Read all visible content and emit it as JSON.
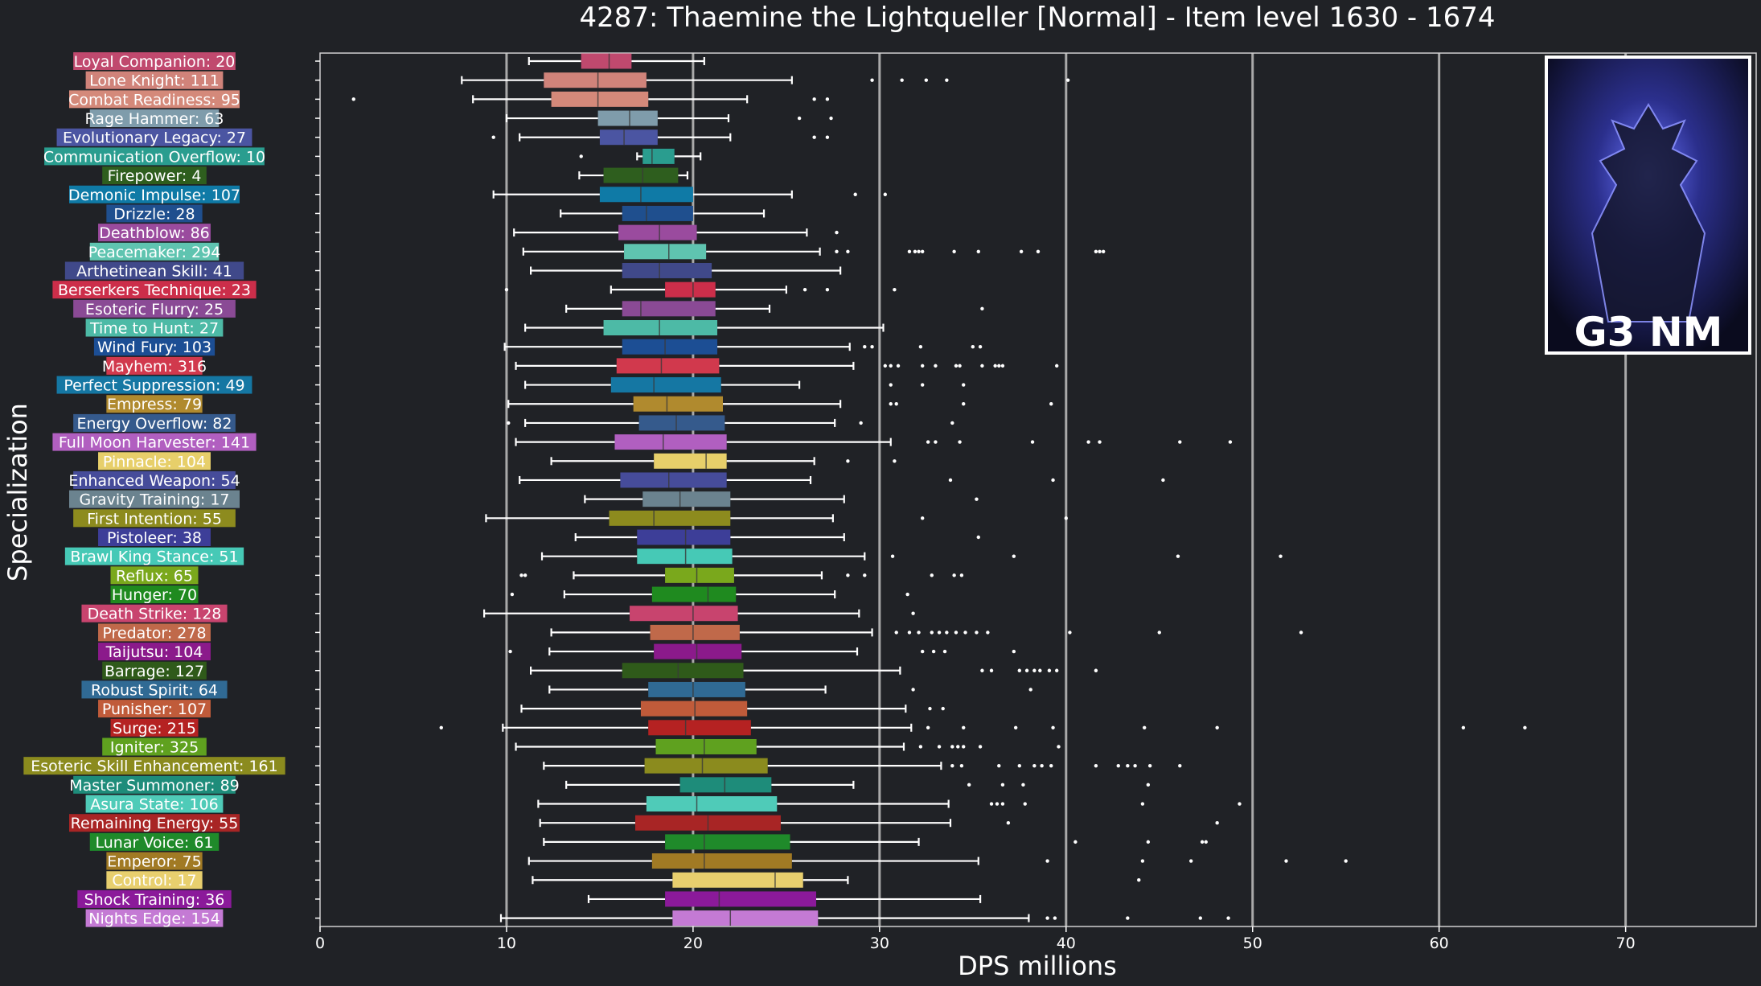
{
  "chart_data": {
    "type": "box",
    "title": "4287: Thaemine the Lightqueller [Normal] - Item level 1630 - 1674",
    "xlabel": "DPS millions",
    "ylabel": "Specialization",
    "xlim": [
      0,
      77
    ],
    "xticks": [
      0,
      10,
      20,
      30,
      40,
      50,
      60,
      70
    ],
    "grid": "vertical gridlines at 10, 20, 30, 40, 50, 60, 70",
    "badge": "G3 NM",
    "series": [
      {
        "label": "Loyal Companion: 20",
        "color": "#c0496e",
        "whislo": 11.2,
        "q1": 14.0,
        "med": 15.5,
        "q3": 16.7,
        "whishi": 20.6,
        "fliers": []
      },
      {
        "label": "Lone Knight: 111",
        "color": "#d0837a",
        "whislo": 7.6,
        "q1": 12.0,
        "med": 14.9,
        "q3": 17.5,
        "whishi": 25.3,
        "fliers": [
          29.6,
          31.2,
          32.5,
          33.6,
          40.1
        ]
      },
      {
        "label": "Combat Readiness: 95",
        "color": "#d4897a",
        "whislo": 8.2,
        "q1": 12.4,
        "med": 14.9,
        "q3": 17.6,
        "whishi": 22.9,
        "fliers": [
          1.8,
          26.5,
          27.2
        ]
      },
      {
        "label": "Rage Hammer: 63",
        "color": "#7f9cab",
        "whislo": 10.0,
        "q1": 14.9,
        "med": 16.6,
        "q3": 18.1,
        "whishi": 21.9,
        "fliers": [
          25.7,
          27.4
        ]
      },
      {
        "label": "Evolutionary Legacy: 27",
        "color": "#4b55a2",
        "whislo": 10.7,
        "q1": 15.0,
        "med": 16.3,
        "q3": 18.1,
        "whishi": 22.0,
        "fliers": [
          9.3,
          26.5,
          27.2
        ]
      },
      {
        "label": "Communication Overflow: 10",
        "color": "#2a9d8f",
        "whislo": 17.0,
        "q1": 17.3,
        "med": 17.8,
        "q3": 19.0,
        "whishi": 20.4,
        "fliers": [
          14.0
        ]
      },
      {
        "label": "Firepower: 4",
        "color": "#2e5e1e",
        "whislo": 13.9,
        "q1": 15.2,
        "med": 17.3,
        "q3": 19.2,
        "whishi": 19.7,
        "fliers": []
      },
      {
        "label": "Demonic Impulse: 107",
        "color": "#0f7aa6",
        "whislo": 9.3,
        "q1": 15.0,
        "med": 17.2,
        "q3": 20.0,
        "whishi": 25.3,
        "fliers": [
          28.7,
          30.3
        ]
      },
      {
        "label": "Drizzle: 28",
        "color": "#1f4f8e",
        "whislo": 12.9,
        "q1": 16.2,
        "med": 17.5,
        "q3": 20.0,
        "whishi": 23.8,
        "fliers": []
      },
      {
        "label": "Deathblow: 86",
        "color": "#9a4b9e",
        "whislo": 10.4,
        "q1": 16.0,
        "med": 18.2,
        "q3": 20.2,
        "whishi": 26.1,
        "fliers": [
          27.7
        ]
      },
      {
        "label": "Peacemaker: 294",
        "color": "#5fc4b0",
        "whislo": 10.9,
        "q1": 16.3,
        "med": 18.7,
        "q3": 20.7,
        "whishi": 26.8,
        "fliers": [
          27.7,
          28.3,
          31.6,
          31.9,
          32.1,
          32.3,
          34.0,
          35.3,
          37.6,
          38.5,
          41.6,
          41.8,
          42.0
        ]
      },
      {
        "label": "Arthetinean Skill: 41",
        "color": "#40498a",
        "whislo": 11.3,
        "q1": 16.2,
        "med": 18.2,
        "q3": 21.0,
        "whishi": 27.9,
        "fliers": []
      },
      {
        "label": "Berserkers Technique: 23",
        "color": "#cc2e4a",
        "whislo": 15.6,
        "q1": 18.5,
        "med": 20.0,
        "q3": 21.2,
        "whishi": 25.0,
        "fliers": [
          10.0,
          26.0,
          27.2,
          30.8
        ]
      },
      {
        "label": "Esoteric Flurry: 25",
        "color": "#8a4a95",
        "whislo": 13.2,
        "q1": 16.2,
        "med": 17.2,
        "q3": 21.2,
        "whishi": 24.1,
        "fliers": [
          35.5
        ]
      },
      {
        "label": "Time to Hunt: 27",
        "color": "#4dbaa6",
        "whislo": 11.0,
        "q1": 15.2,
        "med": 18.2,
        "q3": 21.3,
        "whishi": 30.2,
        "fliers": []
      },
      {
        "label": "Wind Fury: 103",
        "color": "#1c4e94",
        "whislo": 9.9,
        "q1": 16.2,
        "med": 18.5,
        "q3": 21.3,
        "whishi": 28.4,
        "fliers": [
          29.2,
          29.6,
          32.2,
          35.0,
          35.4
        ]
      },
      {
        "label": "Mayhem: 316",
        "color": "#d1394d",
        "whislo": 10.5,
        "q1": 15.9,
        "med": 18.3,
        "q3": 21.4,
        "whishi": 28.6,
        "fliers": [
          30.3,
          30.6,
          31.0,
          32.3,
          33.0,
          34.1,
          34.3,
          35.5,
          36.2,
          36.4,
          36.6,
          39.5
        ]
      },
      {
        "label": "Perfect Suppression: 49",
        "color": "#1577a3",
        "whislo": 11.0,
        "q1": 15.6,
        "med": 17.9,
        "q3": 21.5,
        "whishi": 25.7,
        "fliers": [
          30.6,
          32.3,
          34.5
        ]
      },
      {
        "label": "Empress: 79",
        "color": "#b08a2e",
        "whislo": 10.1,
        "q1": 16.8,
        "med": 18.6,
        "q3": 21.6,
        "whishi": 27.9,
        "fliers": [
          30.6,
          30.9,
          34.5,
          39.2
        ]
      },
      {
        "label": "Energy Overflow: 82",
        "color": "#355a8c",
        "whislo": 11.0,
        "q1": 17.1,
        "med": 19.1,
        "q3": 21.7,
        "whishi": 27.6,
        "fliers": [
          10.1,
          29.0,
          33.9
        ]
      },
      {
        "label": "Full Moon Harvester: 141",
        "color": "#b15fc0",
        "whislo": 10.5,
        "q1": 15.8,
        "med": 18.4,
        "q3": 21.8,
        "whishi": 30.6,
        "fliers": [
          32.6,
          33.0,
          34.3,
          38.2,
          41.2,
          41.8,
          46.1,
          48.8
        ]
      },
      {
        "label": "Pinnacle: 104",
        "color": "#e7cf6a",
        "whislo": 12.4,
        "q1": 17.9,
        "med": 20.7,
        "q3": 21.8,
        "whishi": 26.5,
        "fliers": [
          28.3,
          30.8
        ]
      },
      {
        "label": "Enhanced Weapon: 54",
        "color": "#464c9a",
        "whislo": 10.7,
        "q1": 16.1,
        "med": 18.7,
        "q3": 21.8,
        "whishi": 26.3,
        "fliers": [
          33.8,
          39.3,
          45.2
        ]
      },
      {
        "label": "Gravity Training: 17",
        "color": "#6b838f",
        "whislo": 14.2,
        "q1": 17.3,
        "med": 19.3,
        "q3": 22.0,
        "whishi": 28.1,
        "fliers": [
          35.2
        ]
      },
      {
        "label": "First Intention: 55",
        "color": "#8d8b1e",
        "whislo": 8.9,
        "q1": 15.5,
        "med": 17.9,
        "q3": 22.0,
        "whishi": 27.5,
        "fliers": [
          32.3,
          40.0
        ]
      },
      {
        "label": "Pistoleer: 38",
        "color": "#3d3e98",
        "whislo": 13.7,
        "q1": 17.0,
        "med": 19.6,
        "q3": 22.0,
        "whishi": 28.1,
        "fliers": [
          35.3
        ]
      },
      {
        "label": "Brawl King Stance: 51",
        "color": "#46c9b6",
        "whislo": 11.9,
        "q1": 17.0,
        "med": 19.6,
        "q3": 22.1,
        "whishi": 29.2,
        "fliers": [
          30.7,
          37.2,
          46.0,
          51.5
        ]
      },
      {
        "label": "Reflux: 65",
        "color": "#7aa81c",
        "whislo": 13.6,
        "q1": 18.5,
        "med": 20.2,
        "q3": 22.2,
        "whishi": 26.9,
        "fliers": [
          10.8,
          11.0,
          28.3,
          29.2,
          32.8,
          34.0,
          34.4
        ]
      },
      {
        "label": "Hunger: 70",
        "color": "#1f8a1f",
        "whislo": 13.1,
        "q1": 17.8,
        "med": 20.8,
        "q3": 22.3,
        "whishi": 27.6,
        "fliers": [
          10.3,
          31.5
        ]
      },
      {
        "label": "Death Strike: 128",
        "color": "#c8446e",
        "whislo": 8.8,
        "q1": 16.6,
        "med": 20.0,
        "q3": 22.4,
        "whishi": 28.9,
        "fliers": [
          31.8
        ]
      },
      {
        "label": "Predator: 278",
        "color": "#c0694a",
        "whislo": 12.4,
        "q1": 17.7,
        "med": 20.0,
        "q3": 22.5,
        "whishi": 29.6,
        "fliers": [
          30.9,
          31.6,
          32.1,
          32.8,
          33.2,
          33.6,
          34.1,
          34.6,
          35.2,
          35.8,
          40.2,
          45.0,
          52.6
        ]
      },
      {
        "label": "Taijutsu: 104",
        "color": "#8b1a8b",
        "whislo": 12.3,
        "q1": 17.9,
        "med": 20.2,
        "q3": 22.6,
        "whishi": 28.8,
        "fliers": [
          10.2,
          32.3,
          32.9,
          33.5,
          37.2
        ]
      },
      {
        "label": "Barrage: 127",
        "color": "#2f5a1a",
        "whislo": 11.3,
        "q1": 16.2,
        "med": 19.2,
        "q3": 22.7,
        "whishi": 31.1,
        "fliers": [
          35.5,
          36.0,
          37.5,
          37.9,
          38.3,
          38.6,
          39.1,
          39.5,
          41.6
        ]
      },
      {
        "label": "Robust Spirit: 64",
        "color": "#306a94",
        "whislo": 12.3,
        "q1": 17.6,
        "med": 20.0,
        "q3": 22.8,
        "whishi": 27.1,
        "fliers": [
          31.8,
          38.1
        ]
      },
      {
        "label": "Punisher: 107",
        "color": "#c05b3a",
        "whislo": 10.8,
        "q1": 17.2,
        "med": 20.1,
        "q3": 22.9,
        "whishi": 31.4,
        "fliers": [
          32.7,
          33.4
        ]
      },
      {
        "label": "Surge: 215",
        "color": "#b52222",
        "whislo": 9.8,
        "q1": 17.6,
        "med": 19.6,
        "q3": 23.1,
        "whishi": 31.7,
        "fliers": [
          6.5,
          32.6,
          34.5,
          37.3,
          39.3,
          44.2,
          48.1,
          61.3,
          64.6
        ]
      },
      {
        "label": "Igniter: 325",
        "color": "#5fa11f",
        "whislo": 10.5,
        "q1": 18.0,
        "med": 20.6,
        "q3": 23.4,
        "whishi": 31.3,
        "fliers": [
          32.2,
          33.2,
          33.9,
          34.2,
          34.5,
          35.4,
          39.6
        ]
      },
      {
        "label": "Esoteric Skill Enhancement: 161",
        "color": "#8b8b1e",
        "whislo": 12.0,
        "q1": 17.4,
        "med": 20.5,
        "q3": 24.0,
        "whishi": 33.3,
        "fliers": [
          33.9,
          34.4,
          36.4,
          37.5,
          38.3,
          38.7,
          39.2,
          41.6,
          42.8,
          43.3,
          43.7,
          44.5,
          46.1
        ]
      },
      {
        "label": "Master Summoner: 89",
        "color": "#1e8c7a",
        "whislo": 13.2,
        "q1": 19.3,
        "med": 21.7,
        "q3": 24.2,
        "whishi": 28.6,
        "fliers": [
          34.8,
          36.6,
          37.7,
          44.4
        ]
      },
      {
        "label": "Asura State: 106",
        "color": "#4fcbb8",
        "whislo": 11.7,
        "q1": 17.5,
        "med": 20.2,
        "q3": 24.5,
        "whishi": 33.7,
        "fliers": [
          36.0,
          36.3,
          36.6,
          37.8,
          44.1,
          49.3
        ]
      },
      {
        "label": "Remaining Energy: 55",
        "color": "#a82525",
        "whislo": 11.8,
        "q1": 16.9,
        "med": 20.8,
        "q3": 24.7,
        "whishi": 33.8,
        "fliers": [
          36.9,
          48.1
        ]
      },
      {
        "label": "Lunar Voice: 61",
        "color": "#1f8a2a",
        "whislo": 12.0,
        "q1": 18.5,
        "med": 20.6,
        "q3": 25.2,
        "whishi": 32.1,
        "fliers": [
          40.5,
          44.4,
          47.3,
          47.5
        ]
      },
      {
        "label": "Emperor: 75",
        "color": "#a17a24",
        "whislo": 11.2,
        "q1": 17.8,
        "med": 20.6,
        "q3": 25.3,
        "whishi": 35.3,
        "fliers": [
          39.0,
          44.1,
          46.7,
          51.8,
          55.0
        ]
      },
      {
        "label": "Control: 17",
        "color": "#e8cf6e",
        "whislo": 11.4,
        "q1": 18.9,
        "med": 24.4,
        "q3": 25.9,
        "whishi": 28.3,
        "fliers": [
          43.9
        ]
      },
      {
        "label": "Shock Training: 36",
        "color": "#8b1a9a",
        "whislo": 14.4,
        "q1": 18.5,
        "med": 21.4,
        "q3": 26.6,
        "whishi": 35.4,
        "fliers": []
      },
      {
        "label": "Nights Edge: 154",
        "color": "#c47ad4",
        "whislo": 9.7,
        "q1": 18.9,
        "med": 22.0,
        "q3": 26.7,
        "whishi": 38.0,
        "fliers": [
          39.0,
          39.4,
          43.3,
          47.2,
          48.7
        ]
      }
    ]
  }
}
